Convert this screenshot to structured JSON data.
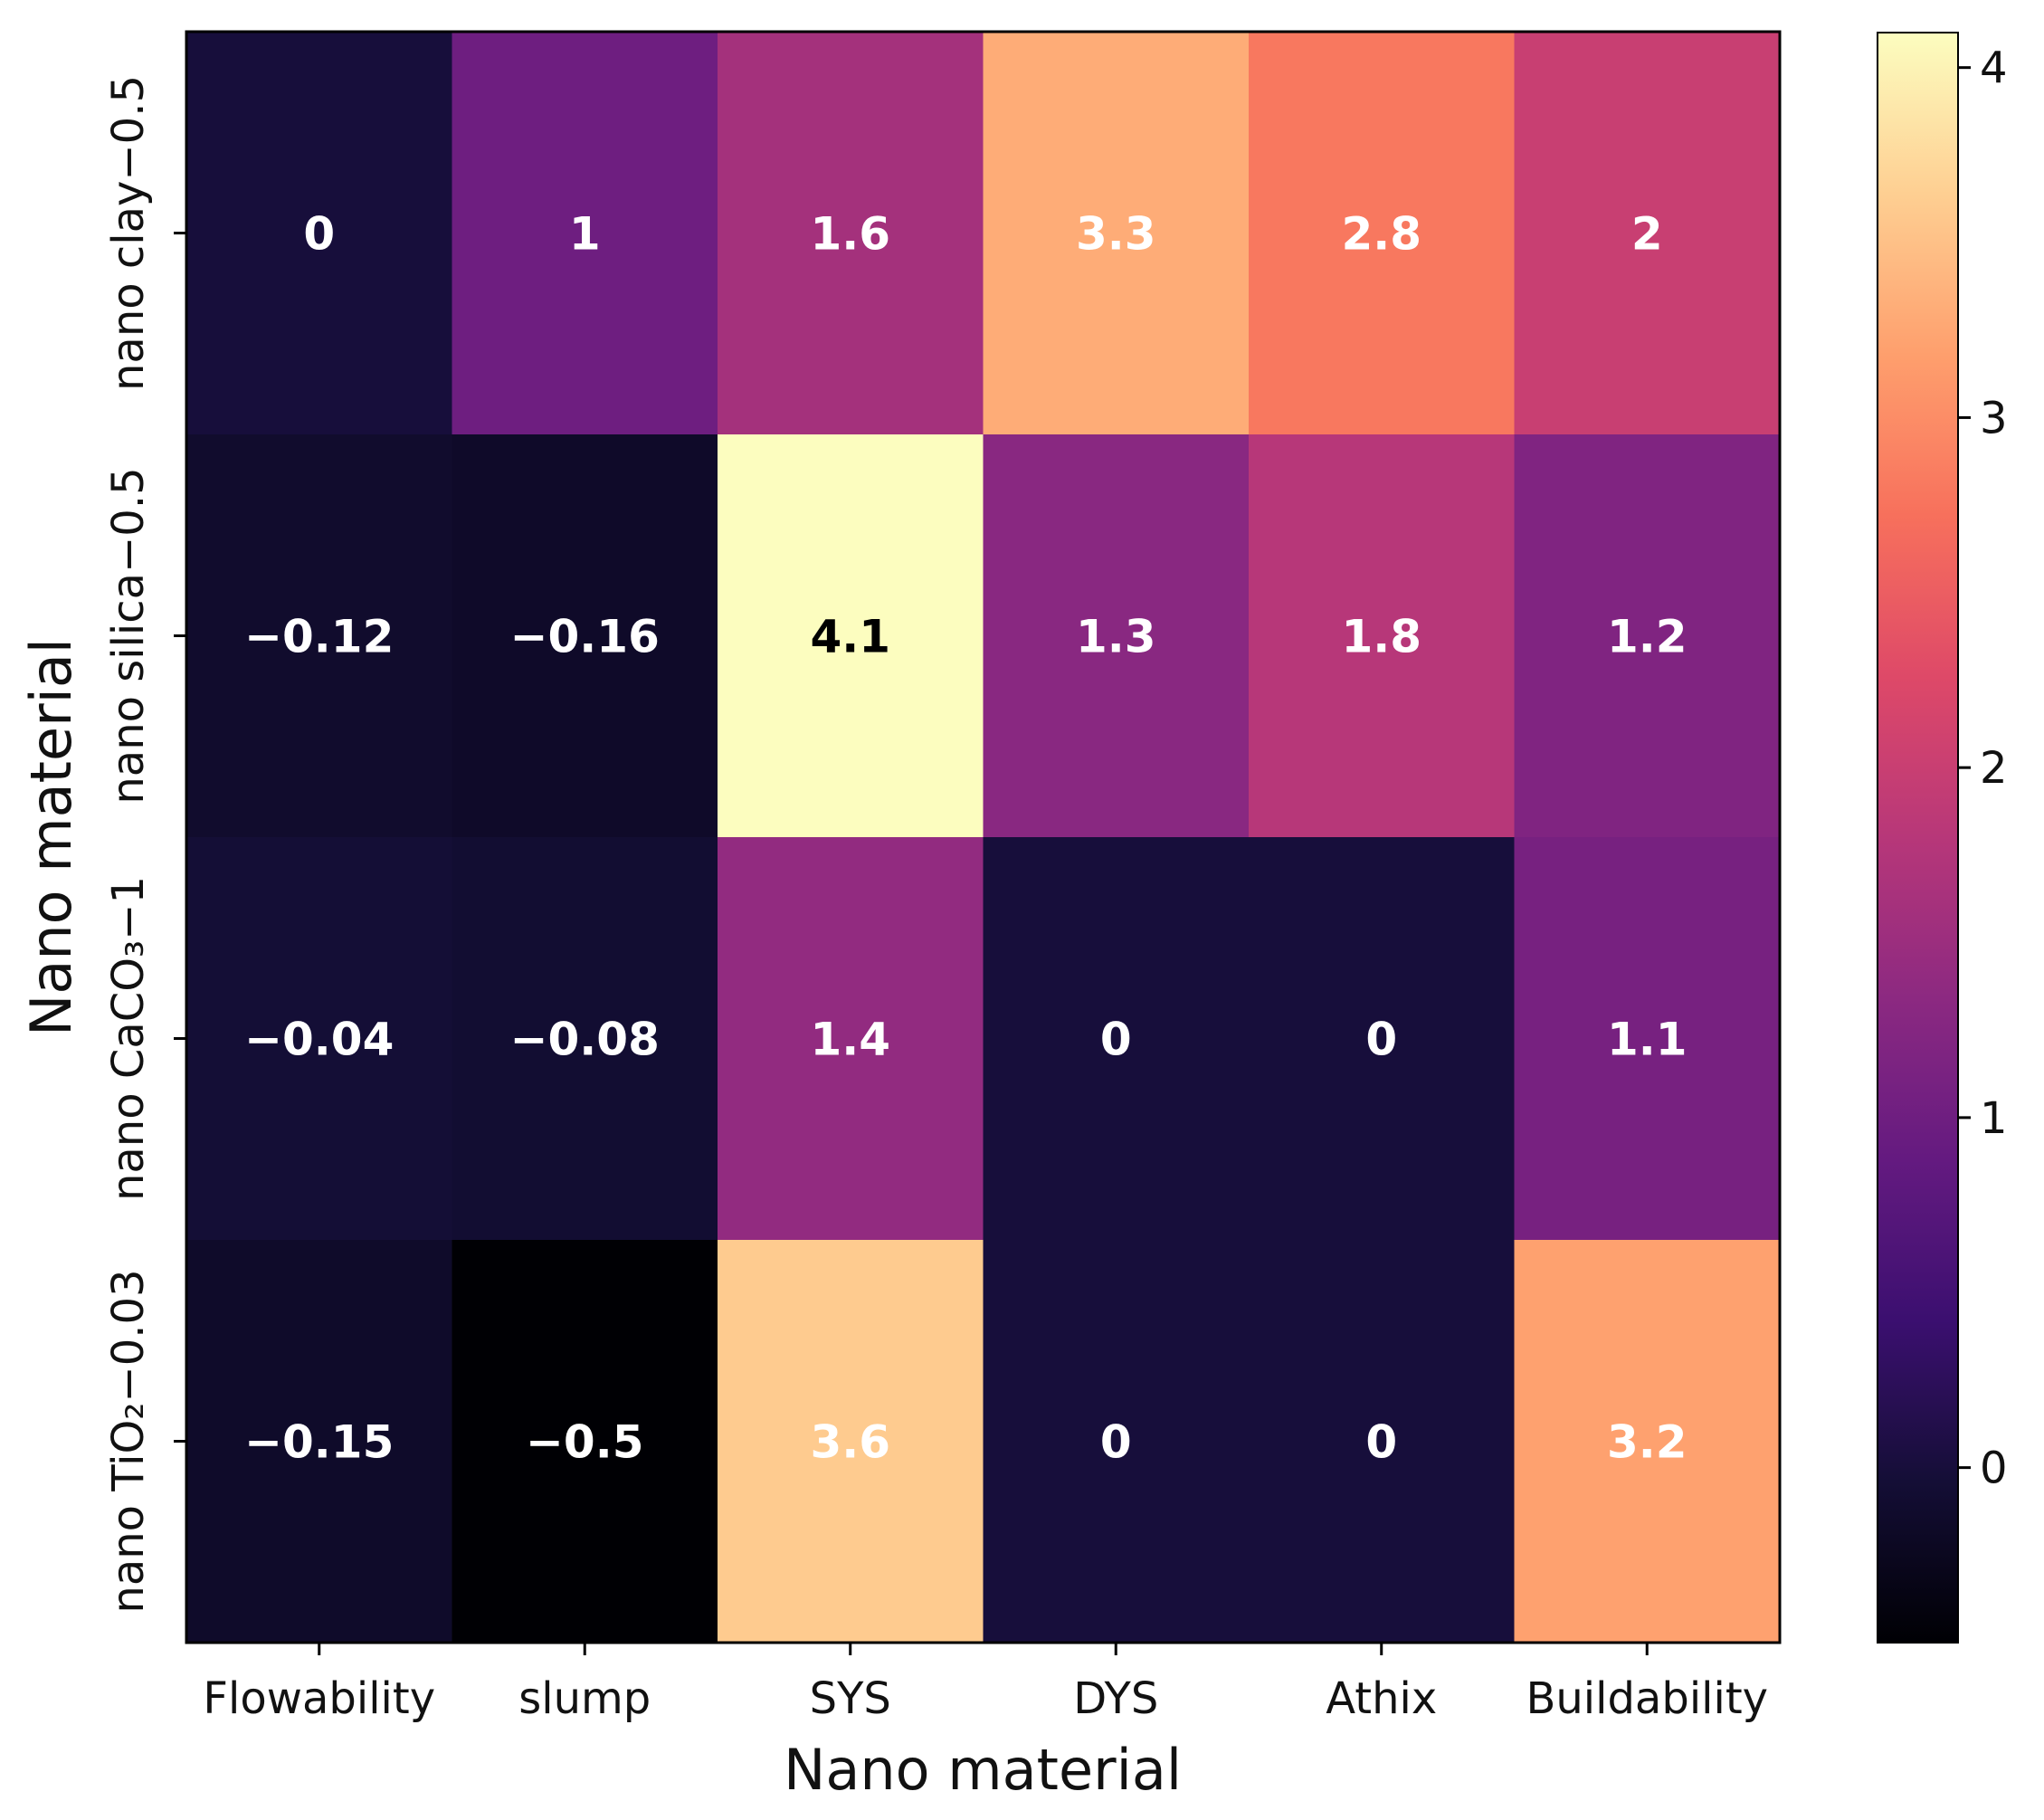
{
  "chart_data": {
    "type": "heatmap",
    "title": "",
    "xlabel": "Nano material",
    "ylabel": "Nano material",
    "x_categories": [
      "Flowability",
      "slump",
      "SYS",
      "DYS",
      "Athix",
      "Buildability"
    ],
    "y_categories": [
      "nano clay−0.5",
      "nano silica−0.5",
      "nano CaCO₃−1",
      "nano TiO₂−0.03"
    ],
    "values": [
      [
        0,
        1,
        1.6,
        3.3,
        2.8,
        2
      ],
      [
        -0.12,
        -0.16,
        4.1,
        1.3,
        1.8,
        1.2
      ],
      [
        -0.04,
        -0.08,
        1.4,
        0,
        0,
        1.1
      ],
      [
        -0.15,
        -0.5,
        3.6,
        0,
        0,
        3.2
      ]
    ],
    "value_labels": [
      [
        "0",
        "1",
        "1.6",
        "3.3",
        "2.8",
        "2"
      ],
      [
        "−0.12",
        "−0.16",
        "4.1",
        "1.3",
        "1.8",
        "1.2"
      ],
      [
        "−0.04",
        "−0.08",
        "1.4",
        "0",
        "0",
        "1.1"
      ],
      [
        "−0.15",
        "−0.5",
        "3.6",
        "0",
        "0",
        "3.2"
      ]
    ],
    "colormap": "magma",
    "colorbar": {
      "range": [
        -0.5,
        4.1
      ],
      "ticks": [
        0,
        1,
        2,
        3,
        4
      ],
      "tick_labels": [
        "0",
        "1",
        "2",
        "3",
        "4"
      ]
    },
    "grid": false
  }
}
